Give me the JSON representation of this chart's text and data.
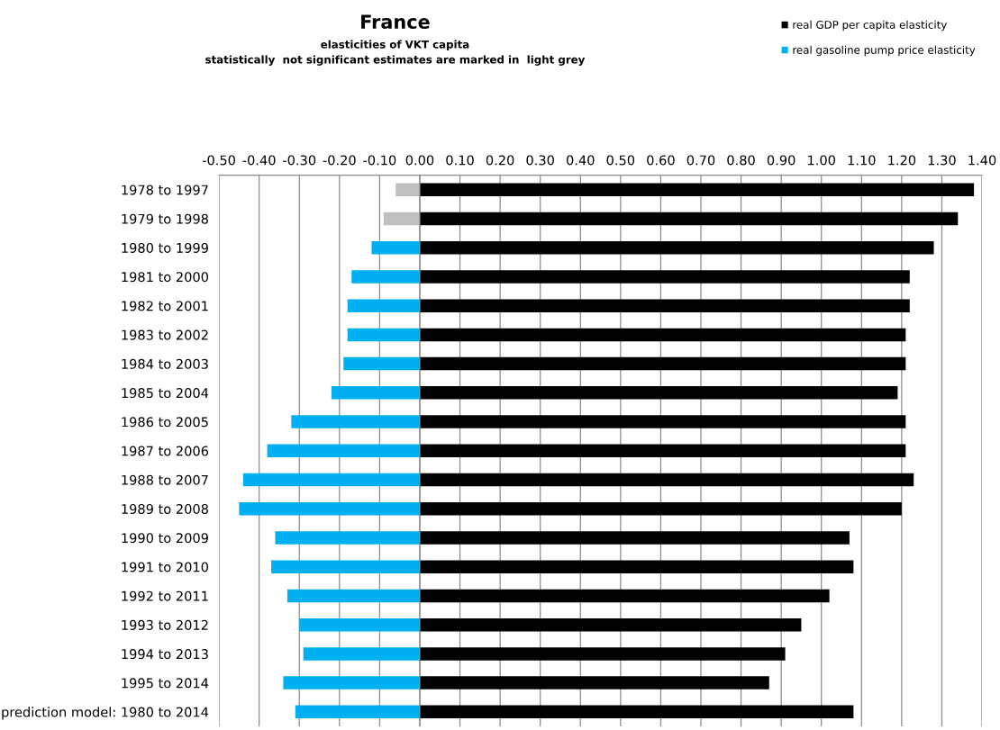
{
  "chart_data": {
    "type": "bar",
    "orientation": "horizontal",
    "title": "France",
    "subtitle": "elasticities of VKT capita\nstatistically  not significant estimates are marked in  light grey",
    "categories": [
      "1978 to 1997",
      "1979 to 1998",
      "1980 to 1999",
      "1981 to 2000",
      "1982 to 2001",
      "1983 to 2002",
      "1984 to 2003",
      "1985 to 2004",
      "1986 to 2005",
      "1987 to 2006",
      "1988 to 2007",
      "1989 to 2008",
      "1990 to 2009",
      "1991 to 2010",
      "1992 to 2011",
      "1993 to 2012",
      "1994 to 2013",
      "1995 to 2014",
      "prediction model: 1980 to 2014"
    ],
    "series": [
      {
        "name": "real GDP per capita elasticity",
        "color": "#000000",
        "values": [
          1.38,
          1.34,
          1.28,
          1.22,
          1.22,
          1.21,
          1.21,
          1.19,
          1.21,
          1.21,
          1.23,
          1.2,
          1.07,
          1.08,
          1.02,
          0.95,
          0.91,
          0.87,
          1.08
        ]
      },
      {
        "name": "real gasoline pump price elasticity",
        "color": "#00b0f0",
        "colors": [
          "#bfbfbf",
          "#bfbfbf",
          "#00b0f0",
          "#00b0f0",
          "#00b0f0",
          "#00b0f0",
          "#00b0f0",
          "#00b0f0",
          "#00b0f0",
          "#00b0f0",
          "#00b0f0",
          "#00b0f0",
          "#00b0f0",
          "#00b0f0",
          "#00b0f0",
          "#00b0f0",
          "#00b0f0",
          "#00b0f0",
          "#00b0f0"
        ],
        "values": [
          -0.06,
          -0.09,
          -0.12,
          -0.17,
          -0.18,
          -0.18,
          -0.19,
          -0.22,
          -0.32,
          -0.38,
          -0.44,
          -0.45,
          -0.36,
          -0.37,
          -0.33,
          -0.3,
          -0.29,
          -0.34,
          -0.31
        ]
      }
    ],
    "xlim": [
      -0.5,
      1.4
    ],
    "xticks": [
      {
        "value": -0.5,
        "label": "-0.50"
      },
      {
        "value": -0.4,
        "label": "-0.40"
      },
      {
        "value": -0.3,
        "label": "-0.30"
      },
      {
        "value": -0.2,
        "label": "-0.20"
      },
      {
        "value": -0.1,
        "label": "-0.10"
      },
      {
        "value": 0,
        "label": "0.00"
      },
      {
        "value": 0.1,
        "label": "0.10"
      },
      {
        "value": 0.2,
        "label": "0.20"
      },
      {
        "value": 0.3,
        "label": "0.30"
      },
      {
        "value": 0.4,
        "label": "0.40"
      },
      {
        "value": 0.5,
        "label": "0.50"
      },
      {
        "value": 0.6,
        "label": "0.60"
      },
      {
        "value": 0.7,
        "label": "0.70"
      },
      {
        "value": 0.8,
        "label": "0.80"
      },
      {
        "value": 0.9,
        "label": "0.90"
      },
      {
        "value": 1.0,
        "label": "1.00"
      },
      {
        "value": 1.1,
        "label": "1.10"
      },
      {
        "value": 1.2,
        "label": "1.20"
      },
      {
        "value": 1.3,
        "label": "1.30"
      },
      {
        "value": 1.4,
        "label": "1.40"
      }
    ],
    "grid": "x",
    "legend": "top right",
    "stacked": true
  }
}
